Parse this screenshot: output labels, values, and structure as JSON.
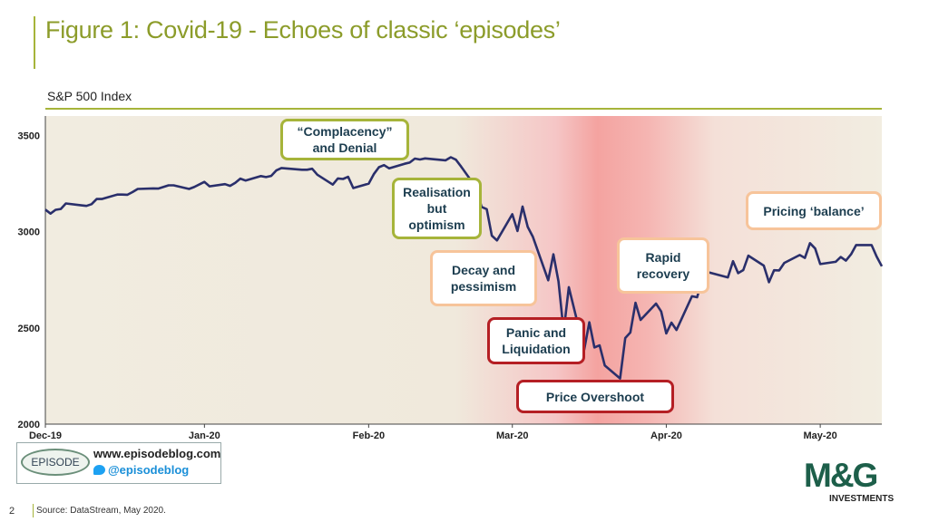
{
  "header": {
    "title": "Figure 1: Covid-19 - Echoes of classic ‘episodes’",
    "subtitle": "S&P 500 Index"
  },
  "chart_data": {
    "type": "line",
    "ylim": [
      2000,
      3600
    ],
    "yticks": [
      2000,
      2500,
      3000,
      3500
    ],
    "x_labels": [
      "Dec-19",
      "Jan-20",
      "Feb-20",
      "Mar-20",
      "Apr-20",
      "May-20"
    ],
    "x_label_dates": [
      "2019-12-02",
      "2020-01-02",
      "2020-02-03",
      "2020-03-02",
      "2020-04-01",
      "2020-05-01"
    ],
    "series": [
      {
        "color": "#2a2f6b",
        "points": [
          [
            "2019-12-02",
            3114
          ],
          [
            "2019-12-03",
            3093
          ],
          [
            "2019-12-04",
            3113
          ],
          [
            "2019-12-05",
            3117
          ],
          [
            "2019-12-06",
            3146
          ],
          [
            "2019-12-09",
            3136
          ],
          [
            "2019-12-10",
            3133
          ],
          [
            "2019-12-11",
            3142
          ],
          [
            "2019-12-12",
            3169
          ],
          [
            "2019-12-13",
            3169
          ],
          [
            "2019-12-16",
            3192
          ],
          [
            "2019-12-17",
            3192
          ],
          [
            "2019-12-18",
            3191
          ],
          [
            "2019-12-19",
            3205
          ],
          [
            "2019-12-20",
            3221
          ],
          [
            "2019-12-23",
            3224
          ],
          [
            "2019-12-24",
            3223
          ],
          [
            "2019-12-26",
            3240
          ],
          [
            "2019-12-27",
            3240
          ],
          [
            "2019-12-30",
            3221
          ],
          [
            "2019-12-31",
            3231
          ],
          [
            "2020-01-02",
            3258
          ],
          [
            "2020-01-03",
            3235
          ],
          [
            "2020-01-06",
            3246
          ],
          [
            "2020-01-07",
            3237
          ],
          [
            "2020-01-08",
            3253
          ],
          [
            "2020-01-09",
            3275
          ],
          [
            "2020-01-10",
            3265
          ],
          [
            "2020-01-13",
            3288
          ],
          [
            "2020-01-14",
            3283
          ],
          [
            "2020-01-15",
            3289
          ],
          [
            "2020-01-16",
            3317
          ],
          [
            "2020-01-17",
            3330
          ],
          [
            "2020-01-21",
            3321
          ],
          [
            "2020-01-22",
            3321
          ],
          [
            "2020-01-23",
            3326
          ],
          [
            "2020-01-24",
            3295
          ],
          [
            "2020-01-27",
            3244
          ],
          [
            "2020-01-28",
            3276
          ],
          [
            "2020-01-29",
            3273
          ],
          [
            "2020-01-30",
            3284
          ],
          [
            "2020-01-31",
            3226
          ],
          [
            "2020-02-03",
            3249
          ],
          [
            "2020-02-04",
            3298
          ],
          [
            "2020-02-05",
            3334
          ],
          [
            "2020-02-06",
            3345
          ],
          [
            "2020-02-07",
            3328
          ],
          [
            "2020-02-10",
            3352
          ],
          [
            "2020-02-11",
            3358
          ],
          [
            "2020-02-12",
            3379
          ],
          [
            "2020-02-13",
            3374
          ],
          [
            "2020-02-14",
            3380
          ],
          [
            "2020-02-18",
            3370
          ],
          [
            "2020-02-19",
            3386
          ],
          [
            "2020-02-20",
            3373
          ],
          [
            "2020-02-21",
            3338
          ],
          [
            "2020-02-24",
            3226
          ],
          [
            "2020-02-25",
            3128
          ],
          [
            "2020-02-26",
            3116
          ],
          [
            "2020-02-27",
            2979
          ],
          [
            "2020-02-28",
            2954
          ],
          [
            "2020-03-02",
            3090
          ],
          [
            "2020-03-03",
            3003
          ],
          [
            "2020-03-04",
            3130
          ],
          [
            "2020-03-05",
            3024
          ],
          [
            "2020-03-06",
            2972
          ],
          [
            "2020-03-09",
            2747
          ],
          [
            "2020-03-10",
            2882
          ],
          [
            "2020-03-11",
            2741
          ],
          [
            "2020-03-12",
            2481
          ],
          [
            "2020-03-13",
            2711
          ],
          [
            "2020-03-16",
            2386
          ],
          [
            "2020-03-17",
            2529
          ],
          [
            "2020-03-18",
            2398
          ],
          [
            "2020-03-19",
            2409
          ],
          [
            "2020-03-20",
            2305
          ],
          [
            "2020-03-23",
            2237
          ],
          [
            "2020-03-24",
            2447
          ],
          [
            "2020-03-25",
            2476
          ],
          [
            "2020-03-26",
            2630
          ],
          [
            "2020-03-27",
            2541
          ],
          [
            "2020-03-30",
            2626
          ],
          [
            "2020-03-31",
            2585
          ],
          [
            "2020-04-01",
            2471
          ],
          [
            "2020-04-02",
            2527
          ],
          [
            "2020-04-03",
            2489
          ],
          [
            "2020-04-06",
            2664
          ],
          [
            "2020-04-07",
            2659
          ],
          [
            "2020-04-08",
            2750
          ],
          [
            "2020-04-09",
            2790
          ],
          [
            "2020-04-13",
            2762
          ],
          [
            "2020-04-14",
            2846
          ],
          [
            "2020-04-15",
            2784
          ],
          [
            "2020-04-16",
            2800
          ],
          [
            "2020-04-17",
            2875
          ],
          [
            "2020-04-20",
            2823
          ],
          [
            "2020-04-21",
            2737
          ],
          [
            "2020-04-22",
            2799
          ],
          [
            "2020-04-23",
            2798
          ],
          [
            "2020-04-24",
            2837
          ],
          [
            "2020-04-27",
            2878
          ],
          [
            "2020-04-28",
            2863
          ],
          [
            "2020-04-29",
            2940
          ],
          [
            "2020-04-30",
            2912
          ],
          [
            "2020-05-01",
            2831
          ],
          [
            "2020-05-04",
            2843
          ],
          [
            "2020-05-05",
            2868
          ],
          [
            "2020-05-06",
            2849
          ],
          [
            "2020-05-07",
            2882
          ],
          [
            "2020-05-08",
            2930
          ],
          [
            "2020-05-11",
            2930
          ],
          [
            "2020-05-12",
            2870
          ],
          [
            "2020-05-13",
            2820
          ]
        ]
      }
    ],
    "annotations": [
      {
        "text": "“Complacency” and Denial",
        "style": "green"
      },
      {
        "text": "Realisation but optimism",
        "style": "green"
      },
      {
        "text": "Decay and pessimism",
        "style": "peach"
      },
      {
        "text": "Panic and Liquidation",
        "style": "red"
      },
      {
        "text": "Price Overshoot",
        "style": "red"
      },
      {
        "text": "Rapid recovery",
        "style": "peach"
      },
      {
        "text": "Pricing ‘balance’",
        "style": "peach"
      }
    ]
  },
  "branding": {
    "episode_badge": "EPISODE",
    "episode_url": "www.episodeblog.com",
    "episode_twitter": "@episodeblog",
    "mg_logo": "M&G",
    "mg_sub": "INVESTMENTS"
  },
  "footer": {
    "page_number": "2",
    "source": "Source: DataStream, May 2020."
  }
}
